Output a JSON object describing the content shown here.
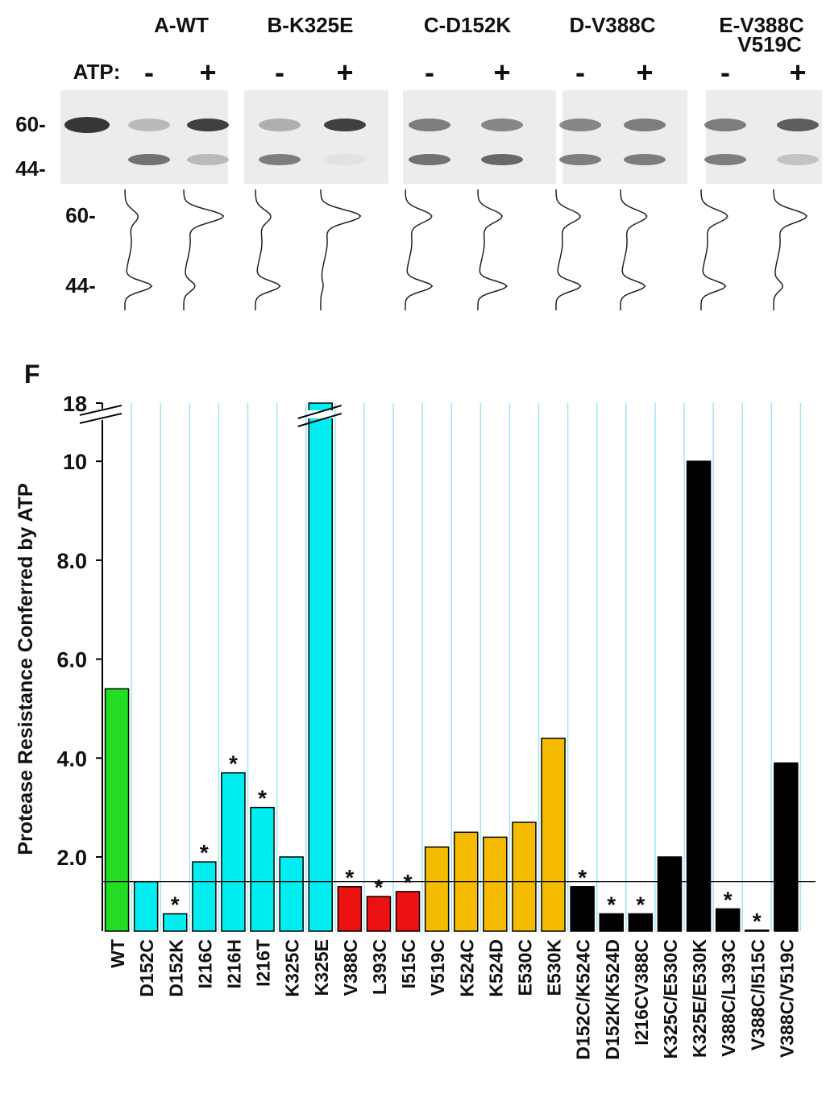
{
  "gel_panel": {
    "atp_label": "ATP:",
    "size_markers": [
      "60-",
      "44-"
    ],
    "trace_markers": [
      "60-",
      "44-"
    ],
    "panels": [
      {
        "title": "A-WT",
        "minus": "-",
        "plus": "+"
      },
      {
        "title": "B-K325E",
        "minus": "-",
        "plus": "+"
      },
      {
        "title": "C-D152K",
        "minus": "-",
        "plus": "+"
      },
      {
        "title": "D-V388C",
        "minus": "-",
        "plus": "+"
      },
      {
        "title": [
          "E-V388C",
          "V519C"
        ],
        "minus": "-",
        "plus": "+"
      }
    ]
  },
  "chart_data": {
    "type": "bar",
    "panel_label": "F",
    "ylabel": "Protease Resistance Conferred by ATP",
    "categories": [
      "WT",
      "D152C",
      "D152K",
      "I216C",
      "I216H",
      "I216T",
      "K325C",
      "K325E",
      "V388C",
      "L393C",
      "I515C",
      "V519C",
      "K524C",
      "K524D",
      "E530C",
      "E530K",
      "D152C/K524C",
      "D152K/K524D",
      "I216CV388C",
      "K325C/E530C",
      "K325E/E530K",
      "V388C/L393C",
      "V388C/I515C",
      "V388C/V519C"
    ],
    "values": [
      5.4,
      1.5,
      0.85,
      1.9,
      3.7,
      3.0,
      2.0,
      18,
      1.4,
      1.2,
      1.3,
      2.2,
      2.5,
      2.4,
      2.7,
      4.4,
      1.4,
      0.85,
      0.85,
      2.0,
      10.0,
      0.95,
      0.52,
      3.9
    ],
    "colors": [
      "#22dd22",
      "#00eef0",
      "#00eef0",
      "#00eef0",
      "#00eef0",
      "#00eef0",
      "#00eef0",
      "#00eef0",
      "#ee1111",
      "#ee1111",
      "#ee1111",
      "#f5bb00",
      "#f5bb00",
      "#f5bb00",
      "#f5bb00",
      "#f5bb00",
      "#000000",
      "#000000",
      "#000000",
      "#000000",
      "#000000",
      "#000000",
      "#000000",
      "#000000"
    ],
    "significant": [
      false,
      false,
      true,
      true,
      true,
      true,
      false,
      false,
      true,
      true,
      true,
      false,
      false,
      false,
      false,
      false,
      true,
      true,
      true,
      false,
      false,
      true,
      true,
      false
    ],
    "significance_marker": "*",
    "ylim": [
      0.5,
      18
    ],
    "ybreak": [
      10.9,
      17.6
    ],
    "yticks": [
      {
        "value": 2,
        "label": "2.0"
      },
      {
        "value": 4,
        "label": "4.0"
      },
      {
        "value": 6,
        "label": "6.0"
      },
      {
        "value": 8,
        "label": "8.0"
      },
      10,
      18
    ],
    "reference_line": 1.5,
    "grid": true,
    "grid_color": "#9be8f0"
  }
}
